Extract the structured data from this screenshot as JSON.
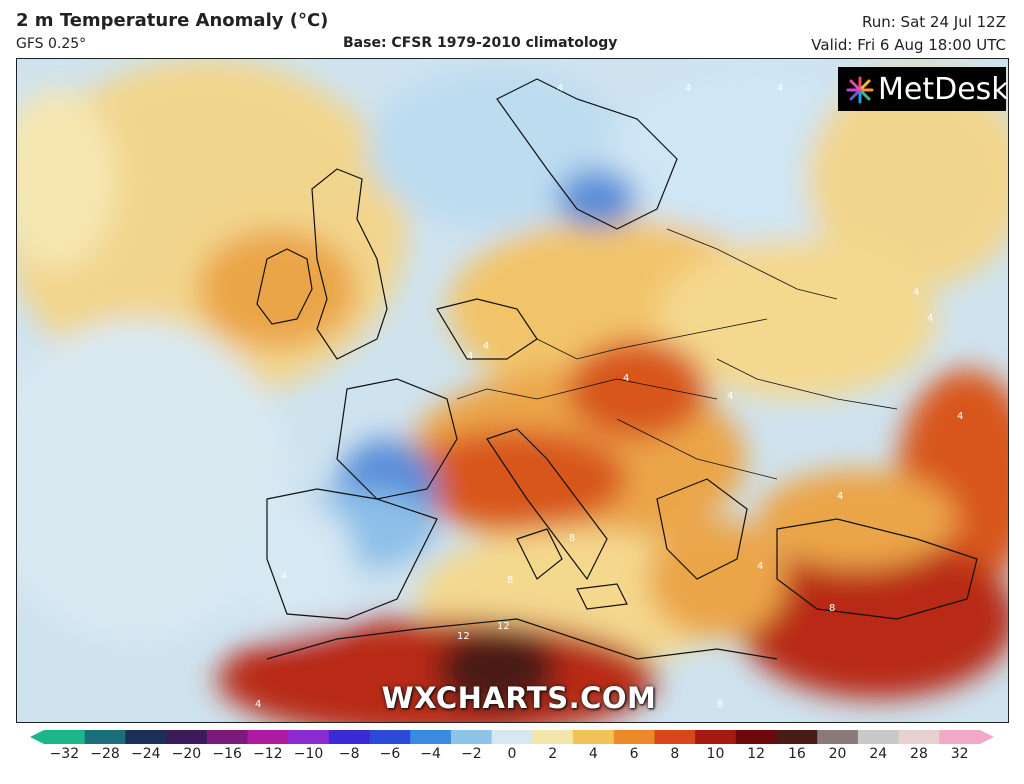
{
  "header": {
    "title": "2 m Temperature Anomaly (°C)",
    "model": "GFS 0.25°",
    "base": "Base: CFSR 1979-2010 climatology",
    "run": "Run: Sat 24 Jul 12Z",
    "valid": "Valid: Fri 6 Aug 18:00 UTC"
  },
  "logo": {
    "text": "MetDesk"
  },
  "watermark": "WXCHARTS.COM",
  "map": {
    "contour_labels": [
      "4",
      "4",
      "4",
      "4",
      "4",
      "4",
      "4",
      "4",
      "4",
      "8",
      "8",
      "8",
      "12",
      "12",
      "8",
      "4",
      "4",
      "4",
      "4",
      "4"
    ]
  },
  "colorbar": {
    "ticks": [
      "−32",
      "−28",
      "−24",
      "−20",
      "−16",
      "−12",
      "−10",
      "−8",
      "−6",
      "−4",
      "−2",
      "0",
      "2",
      "4",
      "6",
      "8",
      "10",
      "12",
      "16",
      "20",
      "24",
      "28",
      "32"
    ],
    "colors": [
      "#1db58a",
      "#1a6f7a",
      "#1a2f5a",
      "#3a1a5a",
      "#7a1a7a",
      "#b01aa0",
      "#8a2ad0",
      "#3a2ad8",
      "#2a4ad8",
      "#3a8ae0",
      "#8cc4ec",
      "#d8e8f0",
      "#f4e6a8",
      "#f3c35a",
      "#ec8a2a",
      "#d8461a",
      "#a81a10",
      "#6a0a0a",
      "#4a1a14",
      "#8a7a7a",
      "#c8c8c8",
      "#e8d0d0",
      "#f4a8c8"
    ]
  }
}
